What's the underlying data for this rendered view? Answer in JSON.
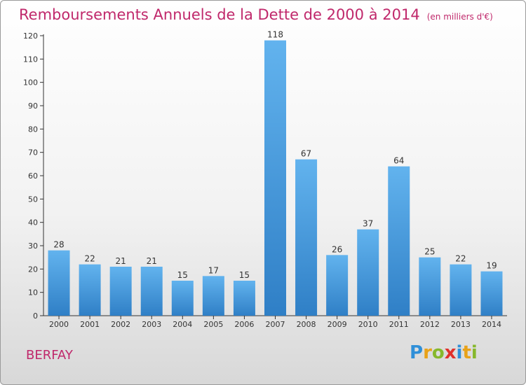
{
  "title": "Remboursements Annuels de la Dette de 2000 à 2014",
  "title_unit": "(en milliers d'€)",
  "commune": "BERFAY",
  "logo": [
    "P",
    "r",
    "o",
    "x",
    "i",
    "t",
    "i"
  ],
  "colors": {
    "accent": "#c0286b",
    "bar_top": "#62b3ee",
    "bar_bottom": "#2f7fc6",
    "axis": "#333333"
  },
  "chart_data": {
    "type": "bar",
    "categories": [
      "2000",
      "2001",
      "2002",
      "2003",
      "2004",
      "2005",
      "2006",
      "2007",
      "2008",
      "2009",
      "2010",
      "2011",
      "2012",
      "2013",
      "2014"
    ],
    "values": [
      28,
      22,
      21,
      21,
      15,
      17,
      15,
      118,
      67,
      26,
      37,
      64,
      25,
      22,
      19
    ],
    "ylim": [
      0,
      120
    ],
    "yticks": [
      0,
      10,
      20,
      30,
      40,
      50,
      60,
      70,
      80,
      90,
      100,
      110,
      120
    ],
    "grid": false,
    "xlabel": "",
    "ylabel": ""
  }
}
